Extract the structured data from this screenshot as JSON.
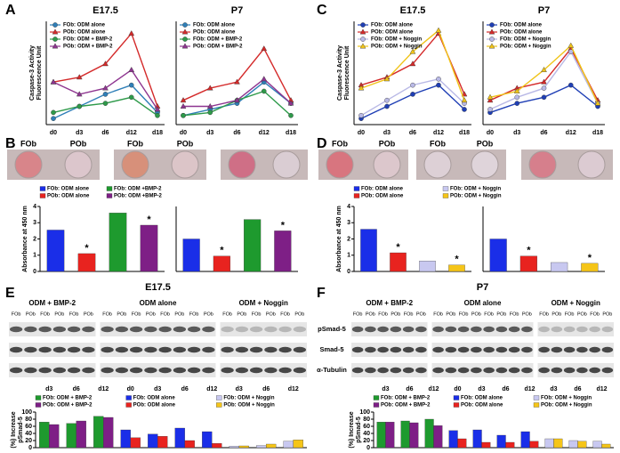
{
  "figure": {
    "panels": [
      "A",
      "B",
      "C",
      "D",
      "E",
      "F"
    ],
    "dishes": [
      [
        "FOb",
        "POb",
        "FOb",
        "POb"
      ],
      [
        "FOb",
        "POb",
        "FOb",
        "POb"
      ]
    ],
    "blot_rows": [
      "pSmad-5",
      "Smad-5",
      "α-Tubulin"
    ],
    "blots": [
      {
        "title": "E17.5",
        "groups": [
          {
            "label": "ODM + BMP-2",
            "lanes": [
              "FOb",
              "POb",
              "FOb",
              "POb",
              "FOb",
              "POb"
            ]
          },
          {
            "label": "ODM alone",
            "lanes": [
              "FOb",
              "POb",
              "FOb",
              "POb",
              "FOb",
              "POb",
              "FOb",
              "POb"
            ]
          },
          {
            "label": "ODM + Noggin",
            "lanes": [
              "FOb",
              "POb",
              "FOb",
              "POb",
              "FOb",
              "POb"
            ]
          }
        ]
      },
      {
        "title": "P7",
        "groups": [
          {
            "label": "ODM + BMP-2",
            "lanes": [
              "FOb",
              "POb",
              "FOb",
              "POb",
              "FOb",
              "POb"
            ]
          },
          {
            "label": "ODM alone",
            "lanes": [
              "FOb",
              "POb",
              "FOb",
              "POb",
              "FOb",
              "POb",
              "FOb",
              "POb"
            ]
          },
          {
            "label": "ODM + Noggin",
            "lanes": [
              "FOb",
              "POb",
              "FOb",
              "POb",
              "FOb",
              "POb"
            ]
          }
        ]
      }
    ]
  },
  "chart_data": [
    {
      "type": "line",
      "title": "E17.5",
      "ylabel": [
        "Caspase-3 Activity",
        "Fluorescence Unit"
      ],
      "categories": [
        "d0",
        "d3",
        "d6",
        "d12",
        "d18"
      ],
      "ylim": [
        0,
        170
      ],
      "series": [
        {
          "name": "FOb: ODM alone",
          "color": "#2f7fb8",
          "marker": "circle",
          "values": [
            10,
            30,
            50,
            65,
            20
          ]
        },
        {
          "name": "POb: ODM alone",
          "color": "#d42a2a",
          "marker": "triangle",
          "values": [
            70,
            78,
            100,
            150,
            30
          ]
        },
        {
          "name": "FOb: ODM + BMP-2",
          "color": "#2e9a4a",
          "marker": "circle",
          "values": [
            20,
            30,
            35,
            45,
            15
          ]
        },
        {
          "name": "POb: ODM + BMP-2",
          "color": "#8e3590",
          "marker": "triangle",
          "values": [
            70,
            50,
            60,
            90,
            25
          ]
        }
      ]
    },
    {
      "type": "line",
      "title": "P7",
      "categories": [
        "d0",
        "d3",
        "d6",
        "d12",
        "d18"
      ],
      "ylim": [
        0,
        170
      ],
      "series": [
        {
          "name": "FOb: ODM alone",
          "color": "#2f7fb8",
          "marker": "circle",
          "values": [
            15,
            25,
            35,
            70,
            35
          ]
        },
        {
          "name": "POb: ODM alone",
          "color": "#d42a2a",
          "marker": "triangle",
          "values": [
            40,
            60,
            70,
            125,
            40
          ]
        },
        {
          "name": "FOb: ODM + BMP-2",
          "color": "#2e9a4a",
          "marker": "circle",
          "values": [
            15,
            20,
            40,
            55,
            15
          ]
        },
        {
          "name": "POb: ODM + BMP-2",
          "color": "#8e3590",
          "marker": "triangle",
          "values": [
            30,
            30,
            40,
            75,
            35
          ]
        }
      ]
    },
    {
      "type": "line",
      "title": "E17.5",
      "ylabel": [
        "Caspase-3 Activity",
        "Fluorescence Unit"
      ],
      "categories": [
        "d0",
        "d3",
        "d6",
        "d12",
        "d18"
      ],
      "ylim": [
        0,
        170
      ],
      "series": [
        {
          "name": "FOb: ODM alone",
          "color": "#1f3fb5",
          "marker": "circle",
          "values": [
            10,
            30,
            50,
            65,
            25
          ]
        },
        {
          "name": "POb: ODM alone",
          "color": "#d42a2a",
          "marker": "triangle",
          "values": [
            65,
            78,
            100,
            150,
            50
          ]
        },
        {
          "name": "FOb: ODM + Noggin",
          "color": "#b9b9e6",
          "marker": "circle",
          "values": [
            15,
            40,
            65,
            75,
            35
          ]
        },
        {
          "name": "POb: ODM + Noggin",
          "color": "#f0c419",
          "marker": "triangle",
          "values": [
            60,
            75,
            120,
            155,
            40
          ]
        }
      ]
    },
    {
      "type": "line",
      "title": "P7",
      "categories": [
        "d0",
        "d3",
        "d6",
        "d12",
        "d18"
      ],
      "ylim": [
        0,
        170
      ],
      "series": [
        {
          "name": "FOb: ODM alone",
          "color": "#1f3fb5",
          "marker": "circle",
          "values": [
            20,
            35,
            45,
            65,
            30
          ]
        },
        {
          "name": "POb: ODM alone",
          "color": "#d42a2a",
          "marker": "triangle",
          "values": [
            40,
            60,
            70,
            125,
            40
          ]
        },
        {
          "name": "FOb: ODM + Noggin",
          "color": "#b9b9e6",
          "marker": "circle",
          "values": [
            25,
            45,
            60,
            120,
            35
          ]
        },
        {
          "name": "POb: ODM + Noggin",
          "color": "#f0c419",
          "marker": "triangle",
          "values": [
            45,
            55,
            90,
            130,
            35
          ]
        }
      ]
    },
    {
      "type": "bar",
      "ylabel": "Absorbance at 450 nm",
      "ylim": [
        0,
        4
      ],
      "yticks": [
        0,
        1,
        2,
        3,
        4
      ],
      "series": [
        {
          "name": "FOb: ODM alone",
          "color": "#1a2ee8",
          "values": [
            2.55
          ]
        },
        {
          "name": "POb: ODM alone",
          "color": "#e8231f",
          "values": [
            1.1
          ]
        },
        {
          "name": "FOb: ODM +BMP-2",
          "color": "#1e9a2e",
          "values": [
            3.6
          ]
        },
        {
          "name": "POb: ODM +BMP-2",
          "color": "#7e1f86",
          "values": [
            2.85
          ]
        }
      ],
      "annotations": [
        {
          "text": "*",
          "series": 1
        },
        {
          "text": "*",
          "series": 3
        }
      ]
    },
    {
      "type": "bar",
      "ylim": [
        0,
        4
      ],
      "series": [
        {
          "color": "#1a2ee8",
          "values": [
            2.0
          ]
        },
        {
          "color": "#e8231f",
          "values": [
            0.95
          ]
        },
        {
          "color": "#1e9a2e",
          "values": [
            3.2
          ]
        },
        {
          "color": "#7e1f86",
          "values": [
            2.5
          ]
        }
      ],
      "annotations": [
        {
          "text": "*",
          "series": 1
        },
        {
          "text": "*",
          "series": 3
        }
      ]
    },
    {
      "type": "bar",
      "ylabel": "Absorbance at 450 nm",
      "ylim": [
        0,
        4
      ],
      "yticks": [
        0,
        1,
        2,
        3,
        4
      ],
      "series": [
        {
          "name": "FOb: ODM alone",
          "color": "#1a2ee8",
          "values": [
            2.6
          ]
        },
        {
          "name": "POb: ODM alone",
          "color": "#e8231f",
          "values": [
            1.15
          ]
        },
        {
          "name": "FOb: ODM + Noggin",
          "color": "#c8c8f0",
          "values": [
            0.65
          ]
        },
        {
          "name": "POb: ODM + Noggin",
          "color": "#f5c518",
          "values": [
            0.4
          ]
        }
      ],
      "annotations": [
        {
          "text": "*",
          "series": 1
        },
        {
          "text": "*",
          "series": 3
        }
      ]
    },
    {
      "type": "bar",
      "ylim": [
        0,
        4
      ],
      "series": [
        {
          "color": "#1a2ee8",
          "values": [
            2.0
          ]
        },
        {
          "color": "#e8231f",
          "values": [
            0.95
          ]
        },
        {
          "color": "#c8c8f0",
          "values": [
            0.55
          ]
        },
        {
          "color": "#f5c518",
          "values": [
            0.5
          ]
        }
      ],
      "annotations": [
        {
          "text": "*",
          "series": 1
        },
        {
          "text": "*",
          "series": 3
        }
      ]
    },
    {
      "type": "bar",
      "ylabel": [
        "(%) Increase",
        "pSmad-5"
      ],
      "ylim": [
        0,
        100
      ],
      "yticks": [
        0,
        20,
        40,
        60,
        80,
        100
      ],
      "categories": [
        "d3",
        "d6",
        "d12",
        "d0",
        "d3",
        "d6",
        "d12",
        "d3",
        "d6",
        "d12"
      ],
      "series": [
        {
          "name": "FOb: ODM + BMP-2",
          "color": "#1e9a2e",
          "values": [
            72,
            68,
            88,
            null,
            null,
            null,
            null,
            null,
            null,
            null
          ]
        },
        {
          "name": "POb: ODM + BMP-2",
          "color": "#7e1f86",
          "values": [
            65,
            75,
            85,
            null,
            null,
            null,
            null,
            null,
            null,
            null
          ]
        },
        {
          "name": "FOb: ODM alone",
          "color": "#1a2ee8",
          "values": [
            null,
            null,
            null,
            50,
            38,
            55,
            45,
            null,
            null,
            null
          ]
        },
        {
          "name": "POb: ODM alone",
          "color": "#e8231f",
          "values": [
            null,
            null,
            null,
            28,
            32,
            20,
            12,
            null,
            null,
            null
          ]
        },
        {
          "name": "FOb: ODM + Noggin",
          "color": "#c8c8f0",
          "values": [
            null,
            null,
            null,
            null,
            null,
            null,
            null,
            4,
            6,
            18
          ]
        },
        {
          "name": "POb: ODM + Noggin",
          "color": "#f5c518",
          "values": [
            null,
            null,
            null,
            null,
            null,
            null,
            null,
            5,
            10,
            22
          ]
        }
      ]
    },
    {
      "type": "bar",
      "ylabel": [
        "(%) Increase",
        "pSmad-5"
      ],
      "ylim": [
        0,
        100
      ],
      "yticks": [
        0,
        20,
        40,
        60,
        80,
        100
      ],
      "categories": [
        "d3",
        "d6",
        "d12",
        "d0",
        "d3",
        "d6",
        "d12",
        "d3",
        "d6",
        "d12"
      ],
      "series": [
        {
          "name": "FOb: ODM + BMP-2",
          "color": "#1e9a2e",
          "values": [
            72,
            75,
            80,
            null,
            null,
            null,
            null,
            null,
            null,
            null
          ]
        },
        {
          "name": "POb: ODM + BMP-2",
          "color": "#7e1f86",
          "values": [
            72,
            70,
            62,
            null,
            null,
            null,
            null,
            null,
            null,
            null
          ]
        },
        {
          "name": "FOb: ODM alone",
          "color": "#1a2ee8",
          "values": [
            null,
            null,
            null,
            48,
            50,
            35,
            45,
            null,
            null,
            null
          ]
        },
        {
          "name": "POb: ODM alone",
          "color": "#e8231f",
          "values": [
            null,
            null,
            null,
            25,
            15,
            15,
            18,
            null,
            null,
            null
          ]
        },
        {
          "name": "FOb: ODM + Noggin",
          "color": "#c8c8f0",
          "values": [
            null,
            null,
            null,
            null,
            null,
            null,
            null,
            25,
            20,
            18
          ]
        },
        {
          "name": "POb: ODM + Noggin",
          "color": "#f5c518",
          "values": [
            null,
            null,
            null,
            null,
            null,
            null,
            null,
            25,
            18,
            10
          ]
        }
      ]
    }
  ]
}
